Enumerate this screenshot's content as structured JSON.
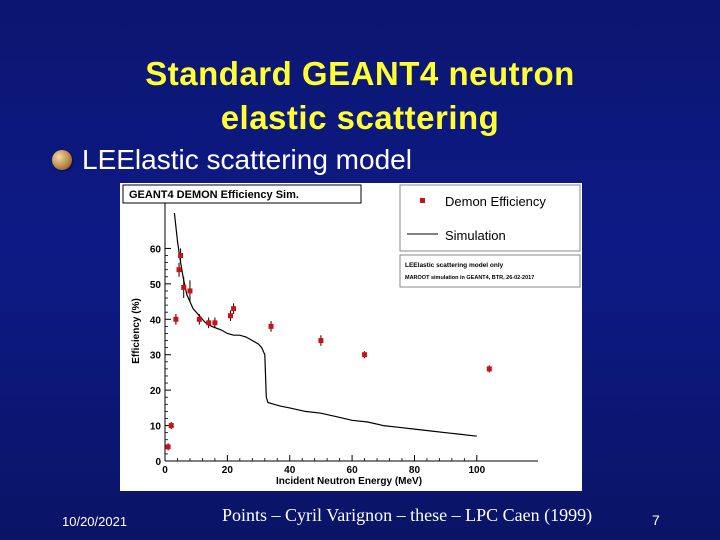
{
  "slide": {
    "title_line1": "Standard GEANT4 neutron",
    "title_line2": "elastic scattering",
    "bullet": "LEElastic scattering model",
    "footer_date": "10/20/2021",
    "footer_caption": "Points – Cyril Varignon – these – LPC Caen (1999)",
    "page_number": "7"
  },
  "colors": {
    "background": "#0d1a86",
    "title": "#ffff33",
    "points": "#cc1111",
    "curve": "#000000"
  },
  "chart_data": {
    "type": "scatter",
    "title": "GEANT4 DEMON Efficiency Sim.",
    "xlabel": "Incident Neutron Energy (MeV)",
    "ylabel": "Efficiency (%)",
    "xlim": [
      0,
      110
    ],
    "ylim": [
      0,
      70
    ],
    "x_ticks": [
      0,
      20,
      40,
      60,
      80,
      100
    ],
    "y_ticks": [
      0,
      10,
      20,
      30,
      40,
      50,
      60
    ],
    "legend_position": "top-right",
    "legend": [
      "Demon Efficiency",
      "Simulation"
    ],
    "annotation_lines": [
      "LEElastic scattering model only",
      "MAROOT simulation in GEANT4, BTR, 26-02-2017"
    ],
    "series": [
      {
        "name": "Demon Efficiency",
        "kind": "points",
        "x": [
          1,
          2,
          3.5,
          4.5,
          5,
          6,
          8,
          11,
          14,
          16,
          21,
          22,
          34,
          50,
          64,
          104
        ],
        "y": [
          4,
          10,
          40,
          54,
          58,
          49,
          48,
          40,
          39,
          39,
          41,
          43,
          38,
          34,
          30,
          26
        ],
        "yerr": [
          1,
          1,
          1.5,
          2,
          2,
          3,
          3,
          1.5,
          1.5,
          1.5,
          1.5,
          1.5,
          1.5,
          1.5,
          1,
          1
        ]
      },
      {
        "name": "Simulation",
        "kind": "line",
        "x": [
          3,
          4,
          5,
          6,
          7,
          9,
          11,
          13,
          15,
          18,
          20,
          22,
          24,
          26,
          28,
          30,
          31,
          32,
          32.5,
          33,
          35,
          37,
          40,
          45,
          50,
          55,
          60,
          65,
          70,
          75,
          80,
          85,
          90,
          95,
          100
        ],
        "y": [
          70,
          62,
          56,
          51,
          47,
          43,
          41,
          39,
          38,
          37,
          36,
          35.5,
          35.5,
          35,
          34,
          33,
          32,
          30,
          18,
          16.5,
          16,
          15.5,
          15,
          14,
          13.5,
          12.5,
          11.5,
          11,
          10,
          9.5,
          9,
          8.5,
          8,
          7.5,
          7
        ]
      }
    ]
  }
}
